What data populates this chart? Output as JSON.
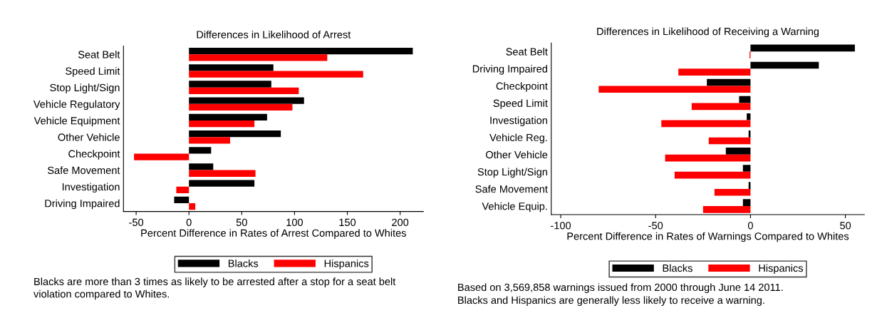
{
  "chart_data": [
    {
      "type": "bar",
      "orientation": "horizontal",
      "title": "Differences in Likelihood of Arrest",
      "xlabel": "Percent Difference in Rates of Arrest Compared to Whites",
      "categories": [
        "Seat Belt",
        "Speed Limit",
        "Stop Light/Sign",
        "Vehicle Regulatory",
        "Vehicle Equipment",
        "Other Vehicle",
        "Checkpoint",
        "Safe Movement",
        "Investigation",
        "Driving Impaired"
      ],
      "series": [
        {
          "name": "Blacks",
          "color": "#000000",
          "values": [
            212,
            80,
            78,
            109,
            74,
            87,
            21,
            23,
            62,
            -14
          ]
        },
        {
          "name": "Hispanics",
          "color": "#ff0000",
          "values": [
            131,
            165,
            104,
            98,
            62,
            39,
            -52,
            63,
            -12,
            6
          ]
        }
      ],
      "xlim": [
        -62,
        222
      ],
      "xticks": [
        -50,
        0,
        50,
        100,
        150,
        200
      ],
      "grid": false,
      "legend": "bottom",
      "annotations": [
        "Blacks are more than 3 times as likely to be arrested after a stop for a seat belt",
        "violation compared to Whites."
      ]
    },
    {
      "type": "bar",
      "orientation": "horizontal",
      "title": "Differences in Likelihood of Receiving a Warning",
      "xlabel": "Percent Difference in Rates of Warnings Compared to Whites",
      "categories": [
        "Seat Belt",
        "Driving Impaired",
        "Checkpoint",
        "Speed Limit",
        "Investigation",
        "Vehicle Reg.",
        "Other Vehicle",
        "Stop Light/Sign",
        "Safe Movement",
        "Vehicle Equip."
      ],
      "series": [
        {
          "name": "Blacks",
          "color": "#000000",
          "values": [
            55,
            36,
            -23,
            -6,
            -2,
            -1,
            -13,
            -4,
            -1,
            -4
          ]
        },
        {
          "name": "Hispanics",
          "color": "#ff0000",
          "values": [
            -0.5,
            -38,
            -80,
            -31,
            -47,
            -22,
            -45,
            -40,
            -19,
            -25
          ]
        }
      ],
      "xlim": [
        -105,
        60
      ],
      "xticks": [
        -100,
        -50,
        0,
        50
      ],
      "grid": false,
      "legend": "bottom",
      "annotations": [
        "Based on 3,569,858 warnings issued from 2000 through June 14 2011.",
        "Blacks and Hispanics are generally less likely to receive a warning."
      ]
    }
  ]
}
